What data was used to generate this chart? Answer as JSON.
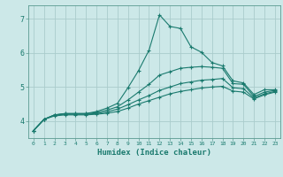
{
  "xlabel": "Humidex (Indice chaleur)",
  "bg_color": "#cce8e8",
  "grid_color": "#aacccc",
  "line_color": "#1a7a6e",
  "spine_color": "#5a9a90",
  "xlim": [
    -0.5,
    23.5
  ],
  "ylim": [
    3.5,
    7.4
  ],
  "yticks": [
    4,
    5,
    6,
    7
  ],
  "ytick_labels": [
    "4",
    "5",
    "6",
    "7"
  ],
  "xticks": [
    0,
    1,
    2,
    3,
    4,
    5,
    6,
    7,
    8,
    9,
    10,
    11,
    12,
    13,
    14,
    15,
    16,
    17,
    18,
    19,
    20,
    21,
    22,
    23
  ],
  "lines": [
    {
      "x": [
        0,
        1,
        2,
        3,
        4,
        5,
        6,
        7,
        8,
        9,
        10,
        11,
        12,
        13,
        14,
        15,
        16,
        17,
        18,
        19,
        20,
        21,
        22,
        23
      ],
      "y": [
        3.72,
        4.05,
        4.18,
        4.22,
        4.22,
        4.22,
        4.28,
        4.38,
        4.52,
        4.98,
        5.48,
        6.08,
        7.12,
        6.78,
        6.72,
        6.18,
        6.02,
        5.72,
        5.62,
        5.18,
        5.12,
        4.78,
        4.92,
        4.92
      ]
    },
    {
      "x": [
        0,
        1,
        2,
        3,
        4,
        5,
        6,
        7,
        8,
        9,
        10,
        11,
        12,
        13,
        14,
        15,
        16,
        17,
        18,
        19,
        20,
        21,
        22,
        23
      ],
      "y": [
        3.72,
        4.05,
        4.18,
        4.22,
        4.22,
        4.22,
        4.25,
        4.32,
        4.42,
        4.62,
        4.85,
        5.08,
        5.35,
        5.45,
        5.55,
        5.58,
        5.6,
        5.58,
        5.55,
        5.1,
        5.08,
        4.72,
        4.85,
        4.9
      ]
    },
    {
      "x": [
        0,
        1,
        2,
        3,
        4,
        5,
        6,
        7,
        8,
        9,
        10,
        11,
        12,
        13,
        14,
        15,
        16,
        17,
        18,
        19,
        20,
        21,
        22,
        23
      ],
      "y": [
        3.72,
        4.05,
        4.18,
        4.2,
        4.2,
        4.2,
        4.22,
        4.27,
        4.35,
        4.48,
        4.62,
        4.75,
        4.9,
        5.0,
        5.1,
        5.15,
        5.2,
        5.22,
        5.25,
        4.98,
        4.95,
        4.68,
        4.8,
        4.87
      ]
    },
    {
      "x": [
        0,
        1,
        2,
        3,
        4,
        5,
        6,
        7,
        8,
        9,
        10,
        11,
        12,
        13,
        14,
        15,
        16,
        17,
        18,
        19,
        20,
        21,
        22,
        23
      ],
      "y": [
        3.72,
        4.05,
        4.15,
        4.18,
        4.18,
        4.18,
        4.2,
        4.23,
        4.28,
        4.38,
        4.5,
        4.6,
        4.7,
        4.8,
        4.87,
        4.92,
        4.97,
        5.0,
        5.02,
        4.88,
        4.85,
        4.65,
        4.77,
        4.85
      ]
    }
  ]
}
